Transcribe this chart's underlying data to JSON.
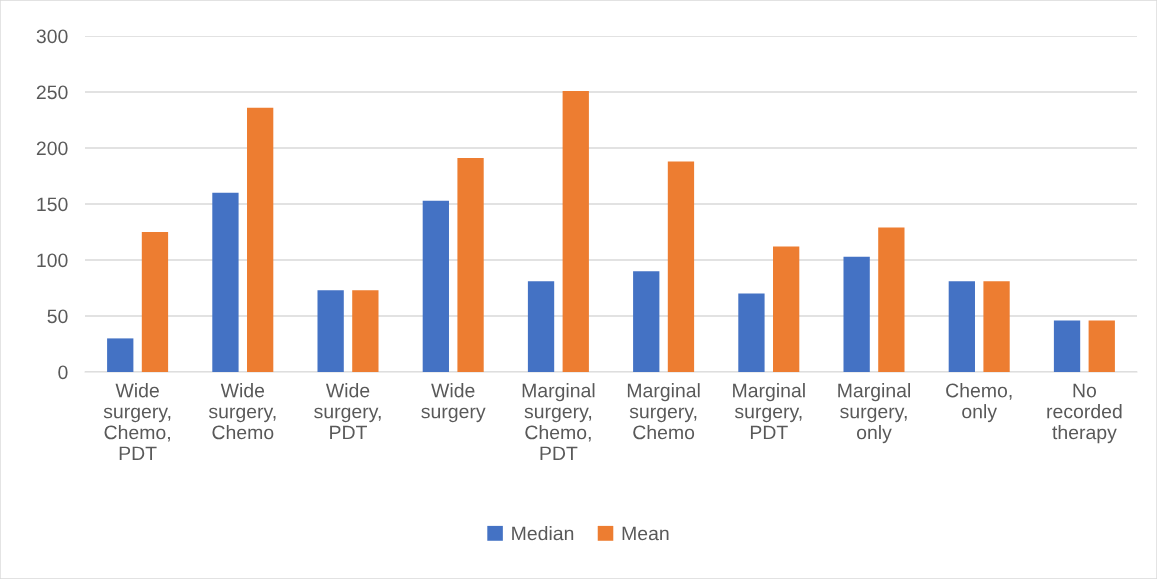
{
  "chart_data": {
    "type": "bar",
    "categories": [
      "Wide\nsurgery,\nChemo,\nPDT",
      "Wide\nsurgery,\nChemo",
      "Wide\nsurgery,\nPDT",
      "Wide\nsurgery",
      "Marginal\nsurgery,\nChemo,\nPDT",
      "Marginal\nsurgery,\nChemo",
      "Marginal\nsurgery,\nPDT",
      "Marginal\nsurgery,\nonly",
      "Chemo,\nonly",
      "No\nrecorded\ntherapy"
    ],
    "series": [
      {
        "name": "Median",
        "color": "#4472c4",
        "values": [
          30,
          160,
          73,
          153,
          81,
          90,
          70,
          103,
          81,
          46
        ]
      },
      {
        "name": "Mean",
        "color": "#ed7d31",
        "values": [
          125,
          236,
          73,
          191,
          251,
          188,
          112,
          129,
          81,
          46
        ]
      }
    ],
    "ylim": [
      0,
      300
    ],
    "yticks": [
      0,
      50,
      100,
      150,
      200,
      250,
      300
    ],
    "grid": "y",
    "legend": "bottom"
  }
}
